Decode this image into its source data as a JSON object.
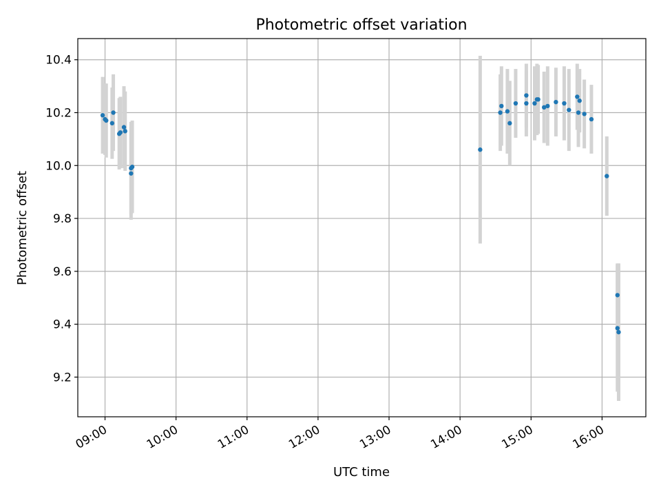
{
  "chart_data": {
    "type": "scatter",
    "title": "Photometric offset variation",
    "xlabel": "UTC time",
    "ylabel": "Photometric offset",
    "xlim": [
      "08:37",
      "16:37"
    ],
    "ylim": [
      9.05,
      10.48
    ],
    "grid": true,
    "x_ticks": [
      "09:00",
      "10:00",
      "11:00",
      "12:00",
      "13:00",
      "14:00",
      "15:00",
      "16:00"
    ],
    "y_ticks": [
      9.2,
      9.4,
      9.6,
      9.8,
      10.0,
      10.2,
      10.4
    ],
    "y_tick_labels": [
      "9.2",
      "9.4",
      "9.6",
      "9.8",
      "10.0",
      "10.2",
      "10.4"
    ],
    "colors": {
      "point": "#1f77b4",
      "errorbar": "#d3d3d3",
      "grid": "#b0b0b0"
    },
    "series": [
      {
        "points": [
          {
            "x": "08:58",
            "y": 10.19,
            "err": 0.145
          },
          {
            "x": "09:00",
            "y": 10.175,
            "err": 0.135
          },
          {
            "x": "09:01",
            "y": 10.17,
            "err": 0.14
          },
          {
            "x": "09:06",
            "y": 10.16,
            "err": 0.135
          },
          {
            "x": "09:07",
            "y": 10.2,
            "err": 0.145
          },
          {
            "x": "09:12",
            "y": 10.12,
            "err": 0.135
          },
          {
            "x": "09:13",
            "y": 10.125,
            "err": 0.135
          },
          {
            "x": "09:16",
            "y": 10.145,
            "err": 0.155
          },
          {
            "x": "09:17",
            "y": 10.13,
            "err": 0.15
          },
          {
            "x": "09:22",
            "y": 9.97,
            "err": 0.175
          },
          {
            "x": "09:22",
            "y": 9.99,
            "err": 0.175
          },
          {
            "x": "09:23",
            "y": 9.995,
            "err": 0.175
          },
          {
            "x": "14:17",
            "y": 10.06,
            "err": 0.355
          },
          {
            "x": "14:34",
            "y": 10.2,
            "err": 0.145
          },
          {
            "x": "14:35",
            "y": 10.225,
            "err": 0.15
          },
          {
            "x": "14:40",
            "y": 10.205,
            "err": 0.16
          },
          {
            "x": "14:42",
            "y": 10.16,
            "err": 0.16
          },
          {
            "x": "14:47",
            "y": 10.235,
            "err": 0.13
          },
          {
            "x": "14:56",
            "y": 10.265,
            "err": 0.12
          },
          {
            "x": "14:56",
            "y": 10.235,
            "err": 0.125
          },
          {
            "x": "15:03",
            "y": 10.235,
            "err": 0.14
          },
          {
            "x": "15:05",
            "y": 10.25,
            "err": 0.135
          },
          {
            "x": "15:06",
            "y": 10.25,
            "err": 0.13
          },
          {
            "x": "15:11",
            "y": 10.22,
            "err": 0.135
          },
          {
            "x": "15:14",
            "y": 10.225,
            "err": 0.15
          },
          {
            "x": "15:21",
            "y": 10.24,
            "err": 0.13
          },
          {
            "x": "15:28",
            "y": 10.235,
            "err": 0.14
          },
          {
            "x": "15:32",
            "y": 10.21,
            "err": 0.155
          },
          {
            "x": "15:39",
            "y": 10.26,
            "err": 0.125
          },
          {
            "x": "15:40",
            "y": 10.2,
            "err": 0.13
          },
          {
            "x": "15:41",
            "y": 10.245,
            "err": 0.12
          },
          {
            "x": "15:45",
            "y": 10.195,
            "err": 0.13
          },
          {
            "x": "15:51",
            "y": 10.175,
            "err": 0.13
          },
          {
            "x": "16:04",
            "y": 9.96,
            "err": 0.15
          },
          {
            "x": "16:13",
            "y": 9.51,
            "err": 0.12
          },
          {
            "x": "16:13",
            "y": 9.385,
            "err": 0.24
          },
          {
            "x": "16:14",
            "y": 9.37,
            "err": 0.26
          }
        ]
      }
    ]
  }
}
